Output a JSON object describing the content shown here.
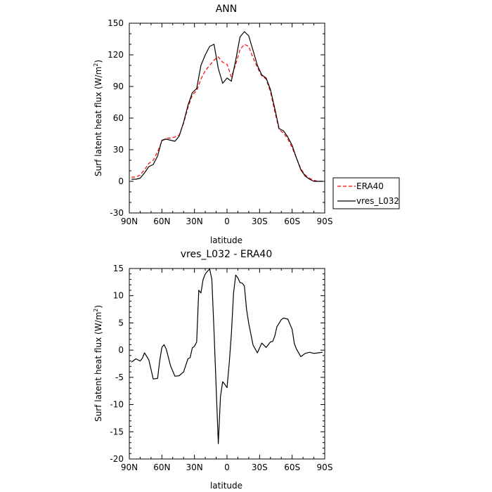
{
  "chart_data": [
    {
      "type": "line",
      "title": "ANN",
      "xlabel": "latitude",
      "ylabel": "Surf latent heat flux (W/m",
      "ylabel_sup": "2",
      "ylabel_end": ")",
      "xlim": [
        90,
        -90
      ],
      "ylim": [
        -30,
        150
      ],
      "xticks": [
        90,
        60,
        30,
        0,
        -30,
        -60,
        -90
      ],
      "xtick_labels": [
        "90N",
        "60N",
        "30N",
        "0",
        "30S",
        "60S",
        "90S"
      ],
      "yticks": [
        -30,
        0,
        30,
        60,
        90,
        120,
        150
      ],
      "ytick_labels": [
        "-30",
        "0",
        "30",
        "60",
        "90",
        "120",
        "150"
      ],
      "legend_position": "right",
      "series": [
        {
          "name": "ERA40",
          "color": "#ff0000",
          "dash": "dashed",
          "x": [
            88,
            84,
            80,
            76,
            72,
            68,
            64,
            60,
            56,
            52,
            48,
            44,
            40,
            36,
            32,
            28,
            24,
            20,
            16,
            12,
            8,
            4,
            0,
            -4,
            -8,
            -12,
            -16,
            -20,
            -24,
            -28,
            -32,
            -36,
            -40,
            -44,
            -48,
            -52,
            -56,
            -60,
            -64,
            -68,
            -72,
            -76,
            -80,
            -84,
            -88
          ],
          "y": [
            4,
            4,
            6,
            11,
            17,
            20,
            28,
            38,
            41,
            41,
            42,
            44,
            55,
            70,
            82,
            86,
            97,
            105,
            110,
            115,
            118,
            113,
            111,
            99,
            111,
            125,
            130,
            128,
            117,
            108,
            100,
            97,
            85,
            66,
            49,
            46,
            40,
            32,
            22,
            12,
            6,
            3,
            1,
            0,
            0
          ]
        },
        {
          "name": "vres_L032",
          "color": "#000000",
          "dash": "solid",
          "x": [
            88,
            84,
            80,
            76,
            72,
            68,
            64,
            60,
            56,
            52,
            48,
            44,
            40,
            36,
            32,
            28,
            24,
            20,
            16,
            12,
            8,
            4,
            0,
            -4,
            -8,
            -12,
            -16,
            -20,
            -24,
            -28,
            -32,
            -36,
            -40,
            -44,
            -48,
            -52,
            -56,
            -60,
            -64,
            -68,
            -72,
            -76,
            -80,
            -84,
            -88
          ],
          "y": [
            2,
            2,
            3,
            8,
            14,
            16,
            24,
            39,
            40,
            39,
            38,
            43,
            56,
            72,
            84,
            88,
            110,
            120,
            128,
            130,
            107,
            93,
            98,
            95,
            115,
            137,
            142,
            138,
            124,
            110,
            101,
            98,
            87,
            69,
            50,
            48,
            42,
            34,
            22,
            11,
            5,
            2,
            0,
            0,
            0
          ]
        }
      ]
    },
    {
      "type": "line",
      "title": "vres_L032 - ERA40",
      "xlabel": "latitude",
      "ylabel": "Surf latent heat flux (W/m",
      "ylabel_sup": "2",
      "ylabel_end": ")",
      "xlim": [
        90,
        -90
      ],
      "ylim": [
        -20,
        15
      ],
      "xticks": [
        90,
        60,
        30,
        0,
        -30,
        -60,
        -90
      ],
      "xtick_labels": [
        "90N",
        "60N",
        "30N",
        "0",
        "30S",
        "60S",
        "90S"
      ],
      "yticks": [
        -20,
        -15,
        -10,
        -5,
        0,
        5,
        10,
        15
      ],
      "ytick_labels": [
        "-20",
        "-15",
        "-10",
        "-5",
        "0",
        "5",
        "10",
        "15"
      ],
      "series": [
        {
          "color": "#000000",
          "dash": "solid",
          "x": [
            88,
            84,
            80,
            78,
            76,
            72,
            68,
            64,
            62,
            60,
            58,
            56,
            52,
            48,
            44,
            40,
            36,
            34,
            32,
            30,
            28,
            26,
            24,
            22,
            20,
            18,
            16,
            14,
            12,
            8,
            6,
            4,
            2,
            0,
            -2,
            -4,
            -6,
            -8,
            -10,
            -12,
            -14,
            -16,
            -18,
            -20,
            -24,
            -28,
            -32,
            -36,
            -40,
            -42,
            -44,
            -46,
            -50,
            -52,
            -56,
            -60,
            -62,
            -64,
            -68,
            -72,
            -76,
            -80,
            -84,
            -88
          ],
          "y": [
            -2.2,
            -1.6,
            -2.0,
            -1.5,
            -0.5,
            -1.8,
            -5.3,
            -5.2,
            -2.0,
            0.5,
            1.0,
            0.2,
            -2.9,
            -4.8,
            -4.7,
            -4.0,
            -1.6,
            -1.4,
            0.4,
            0.7,
            1.5,
            11.0,
            10.5,
            13.0,
            14.0,
            14.5,
            14.9,
            13.0,
            3.5,
            -17.2,
            -8.5,
            -5.8,
            -6.3,
            -6.9,
            -2.5,
            3.0,
            10.5,
            13.8,
            13.3,
            12.4,
            12.3,
            11.8,
            7.5,
            4.9,
            0.9,
            -0.5,
            1.3,
            0.5,
            1.5,
            1.6,
            2.6,
            4.3,
            5.6,
            5.9,
            5.7,
            3.8,
            1.2,
            0.2,
            -1.2,
            -0.6,
            -0.4,
            -0.6,
            -0.5,
            -0.4
          ]
        }
      ]
    }
  ]
}
